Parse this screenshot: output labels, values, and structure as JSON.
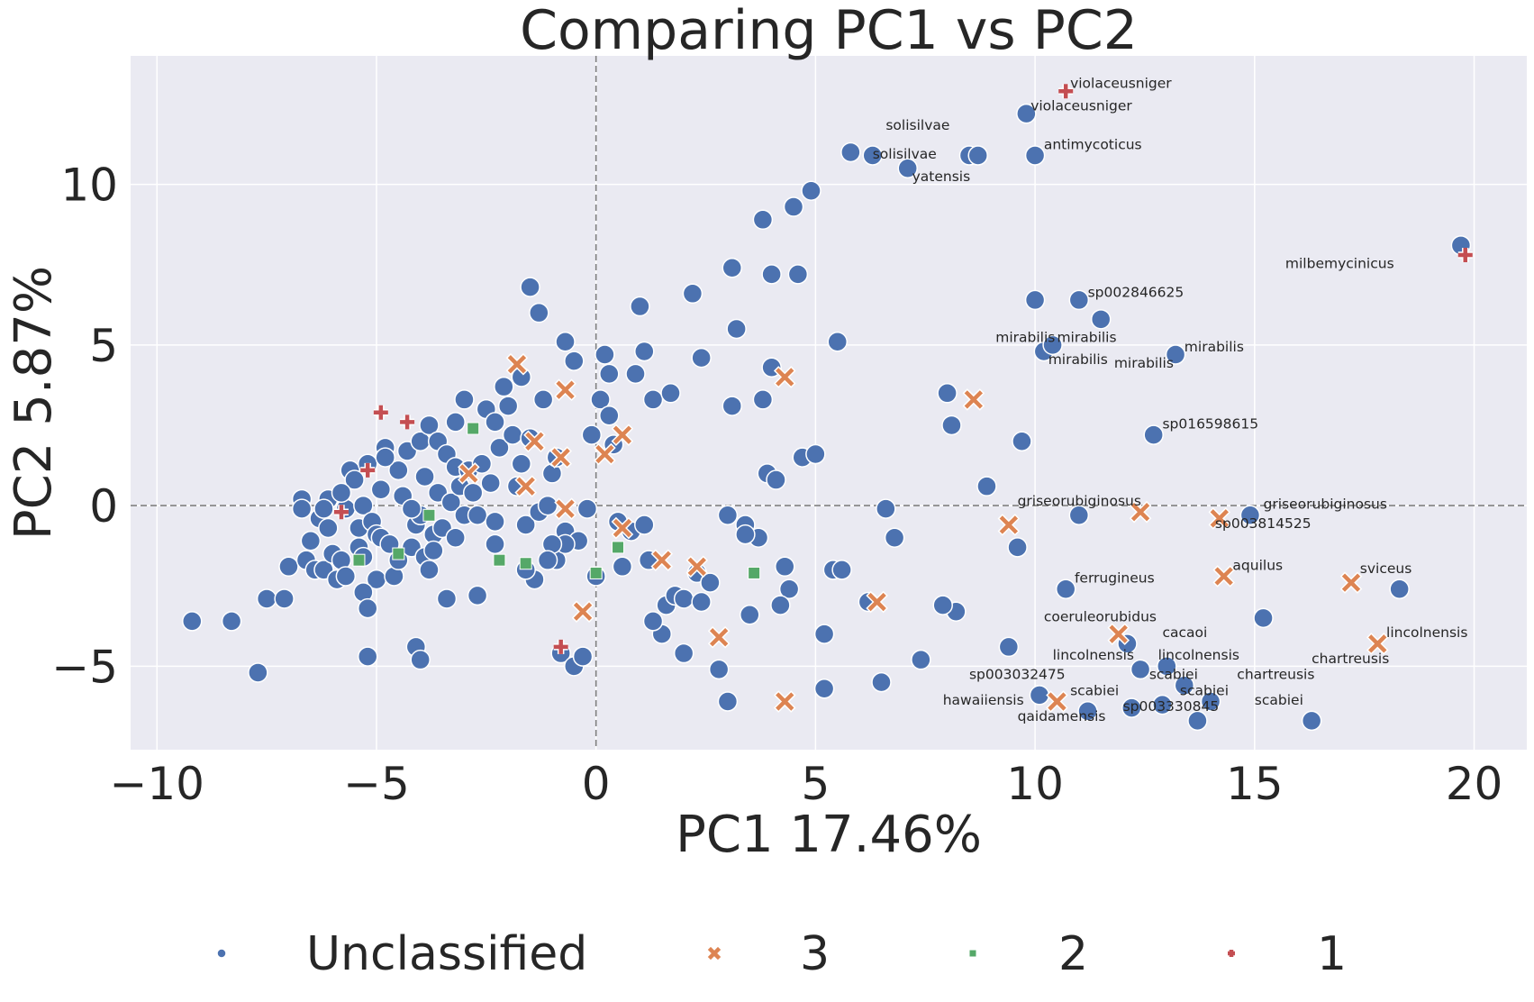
{
  "chart_data": {
    "type": "scatter",
    "title": "Comparing PC1 vs PC2",
    "xlabel": "PC1 17.46%",
    "ylabel": "PC2 5.87%",
    "xlim": [
      -10.6,
      21.2
    ],
    "ylim": [
      -7.6,
      14.0
    ],
    "xticks": [
      -10,
      -5,
      0,
      5,
      10,
      15,
      20
    ],
    "xtick_labels": [
      "−10",
      "−5",
      "0",
      "5",
      "10",
      "15",
      "20"
    ],
    "yticks": [
      -5,
      0,
      5,
      10
    ],
    "ytick_labels": [
      "−5",
      "0",
      "5",
      "10"
    ],
    "grid": true,
    "background": "#eaeaf2",
    "reference_lines": {
      "x": 0,
      "y": 0,
      "style": "dashed",
      "color": "#808080"
    },
    "legend_position": "bottom",
    "series": [
      {
        "name": "Unclassified",
        "marker": "circle",
        "color": "#4c72b0",
        "points": [
          [
            -9.2,
            -3.6
          ],
          [
            -8.3,
            -3.6
          ],
          [
            -7.7,
            -5.2
          ],
          [
            -7.5,
            -2.9
          ],
          [
            -7.1,
            -2.9
          ],
          [
            -7.0,
            -1.9
          ],
          [
            -6.7,
            0.2
          ],
          [
            -6.6,
            -1.7
          ],
          [
            -6.5,
            -1.1
          ],
          [
            -6.4,
            -2.0
          ],
          [
            -6.3,
            -0.4
          ],
          [
            -6.2,
            -2.0
          ],
          [
            -6.1,
            -0.7
          ],
          [
            -6.1,
            0.2
          ],
          [
            -6.0,
            -1.5
          ],
          [
            -5.9,
            -2.3
          ],
          [
            -5.8,
            -1.7
          ],
          [
            -5.7,
            -0.1
          ],
          [
            -5.7,
            -2.2
          ],
          [
            -5.6,
            1.1
          ],
          [
            -5.5,
            0.8
          ],
          [
            -5.4,
            -0.7
          ],
          [
            -5.4,
            -1.3
          ],
          [
            -5.3,
            -1.6
          ],
          [
            -5.3,
            0.0
          ],
          [
            -5.2,
            1.3
          ],
          [
            -5.1,
            -0.5
          ],
          [
            -5.0,
            -2.3
          ],
          [
            -5.0,
            -0.9
          ],
          [
            -4.9,
            -1.0
          ],
          [
            -5.3,
            -2.7
          ],
          [
            -5.2,
            -3.2
          ],
          [
            -4.9,
            0.5
          ],
          [
            -4.8,
            1.8
          ],
          [
            -4.7,
            -1.2
          ],
          [
            -4.6,
            -2.2
          ],
          [
            -4.5,
            1.1
          ],
          [
            -4.5,
            -1.7
          ],
          [
            -4.4,
            0.3
          ],
          [
            -4.3,
            1.7
          ],
          [
            -4.2,
            -1.3
          ],
          [
            -4.1,
            -0.6
          ],
          [
            -4.0,
            2.0
          ],
          [
            -4.0,
            -0.3
          ],
          [
            -3.9,
            0.9
          ],
          [
            -3.9,
            -1.6
          ],
          [
            -3.8,
            2.5
          ],
          [
            -3.8,
            -2.0
          ],
          [
            -3.7,
            -0.9
          ],
          [
            -3.6,
            2.0
          ],
          [
            -3.6,
            0.4
          ],
          [
            -3.5,
            -0.7
          ],
          [
            -3.4,
            1.6
          ],
          [
            -3.3,
            0.1
          ],
          [
            -3.2,
            2.6
          ],
          [
            -3.2,
            1.2
          ],
          [
            -3.2,
            -1.0
          ],
          [
            -3.1,
            0.6
          ],
          [
            -3.0,
            -0.3
          ],
          [
            -2.9,
            1.1
          ],
          [
            -2.8,
            0.4
          ],
          [
            -2.7,
            -0.3
          ],
          [
            -2.6,
            1.3
          ],
          [
            -2.5,
            3.0
          ],
          [
            -2.4,
            0.7
          ],
          [
            -2.3,
            -0.5
          ],
          [
            -2.2,
            1.8
          ],
          [
            -2.1,
            3.7
          ],
          [
            -2.0,
            3.1
          ],
          [
            -1.9,
            2.2
          ],
          [
            -1.8,
            0.6
          ],
          [
            -1.7,
            1.3
          ],
          [
            -1.6,
            -0.6
          ],
          [
            -1.5,
            2.1
          ],
          [
            -1.4,
            -2.3
          ],
          [
            -1.3,
            -0.2
          ],
          [
            -1.2,
            3.3
          ],
          [
            -1.1,
            0.0
          ],
          [
            -1.0,
            1.0
          ],
          [
            -0.9,
            -1.7
          ],
          [
            -0.8,
            -4.6
          ],
          [
            -0.7,
            5.1
          ],
          [
            -0.7,
            -0.8
          ],
          [
            -0.5,
            4.5
          ],
          [
            -0.5,
            -5.0
          ],
          [
            -0.4,
            -1.1
          ],
          [
            -0.3,
            -4.7
          ],
          [
            -0.2,
            -0.1
          ],
          [
            -0.1,
            2.2
          ],
          [
            0.1,
            3.3
          ],
          [
            0.2,
            4.7
          ],
          [
            0.3,
            2.8
          ],
          [
            0.4,
            1.9
          ],
          [
            0.5,
            -0.5
          ],
          [
            0.6,
            -1.9
          ],
          [
            0.8,
            -0.8
          ],
          [
            0.9,
            4.1
          ],
          [
            1.0,
            6.2
          ],
          [
            1.1,
            -0.6
          ],
          [
            1.2,
            -1.7
          ],
          [
            1.3,
            3.3
          ],
          [
            1.5,
            -4.0
          ],
          [
            1.6,
            -3.1
          ],
          [
            1.7,
            3.5
          ],
          [
            1.8,
            -2.8
          ],
          [
            2.0,
            -4.6
          ],
          [
            2.2,
            6.6
          ],
          [
            2.3,
            -2.1
          ],
          [
            2.4,
            4.6
          ],
          [
            2.6,
            -2.4
          ],
          [
            2.8,
            -5.1
          ],
          [
            3.0,
            -0.3
          ],
          [
            3.1,
            3.1
          ],
          [
            3.1,
            7.4
          ],
          [
            3.2,
            5.5
          ],
          [
            3.4,
            -0.6
          ],
          [
            3.5,
            -3.4
          ],
          [
            3.7,
            -1.0
          ],
          [
            3.8,
            3.3
          ],
          [
            3.9,
            1.0
          ],
          [
            4.0,
            7.2
          ],
          [
            4.1,
            0.8
          ],
          [
            4.3,
            -1.9
          ],
          [
            4.4,
            -2.6
          ],
          [
            4.5,
            9.3
          ],
          [
            4.6,
            7.2
          ],
          [
            4.7,
            1.5
          ],
          [
            4.9,
            9.8
          ],
          [
            5.0,
            1.6
          ],
          [
            5.2,
            -4.0
          ],
          [
            5.2,
            -5.7
          ],
          [
            5.4,
            -2.0
          ],
          [
            5.5,
            5.1
          ],
          [
            5.8,
            11.0
          ],
          [
            6.3,
            10.9
          ],
          [
            6.5,
            -5.5
          ],
          [
            6.6,
            -0.1
          ],
          [
            6.8,
            -1.0
          ],
          [
            7.1,
            10.5
          ],
          [
            7.4,
            -4.8
          ],
          [
            8.0,
            3.5
          ],
          [
            8.1,
            2.5
          ],
          [
            8.2,
            -3.3
          ],
          [
            8.5,
            10.9
          ],
          [
            8.7,
            10.9
          ],
          [
            8.9,
            0.6
          ],
          [
            9.4,
            -4.4
          ],
          [
            9.7,
            2.0
          ],
          [
            9.8,
            12.2
          ],
          [
            10.0,
            6.4
          ],
          [
            10.0,
            10.9
          ],
          [
            10.2,
            4.8
          ],
          [
            10.4,
            5.0
          ],
          [
            10.7,
            -2.6
          ],
          [
            11.0,
            6.4
          ],
          [
            11.0,
            -0.3
          ],
          [
            11.5,
            5.8
          ],
          [
            12.1,
            -4.3
          ],
          [
            12.4,
            -5.1
          ],
          [
            12.7,
            2.2
          ],
          [
            13.0,
            -5.0
          ],
          [
            13.2,
            4.7
          ],
          [
            13.4,
            -5.6
          ],
          [
            14.0,
            -6.1
          ],
          [
            14.9,
            -0.3
          ],
          [
            15.2,
            -3.5
          ],
          [
            16.3,
            -6.7
          ],
          [
            18.3,
            -2.6
          ],
          [
            19.7,
            8.1
          ],
          [
            -4.8,
            1.5
          ],
          [
            -3.0,
            3.3
          ],
          [
            -2.3,
            2.6
          ],
          [
            -1.7,
            4.0
          ],
          [
            -1.5,
            6.8
          ],
          [
            -1.3,
            6.0
          ],
          [
            -0.9,
            1.5
          ],
          [
            0.3,
            4.1
          ],
          [
            1.1,
            4.8
          ],
          [
            2.0,
            -2.9
          ],
          [
            3.8,
            8.9
          ],
          [
            4.0,
            4.3
          ],
          [
            4.2,
            -3.1
          ],
          [
            5.6,
            -2.0
          ],
          [
            3.0,
            -6.1
          ],
          [
            -0.7,
            -1.2
          ],
          [
            -4.1,
            -4.4
          ],
          [
            -4.0,
            -4.8
          ],
          [
            -5.2,
            -4.7
          ],
          [
            -6.2,
            -0.1
          ],
          [
            -6.7,
            -0.1
          ],
          [
            -5.8,
            0.4
          ],
          [
            -4.2,
            -0.1
          ],
          [
            -3.7,
            -1.4
          ],
          [
            -2.3,
            -1.2
          ],
          [
            -1.0,
            -1.2
          ],
          [
            0.0,
            -2.2
          ],
          [
            1.3,
            -3.6
          ],
          [
            2.4,
            -3.0
          ],
          [
            3.4,
            -0.9
          ],
          [
            6.2,
            -3.0
          ],
          [
            7.9,
            -3.1
          ],
          [
            9.6,
            -1.3
          ],
          [
            13.7,
            -6.7
          ],
          [
            12.9,
            -6.2
          ],
          [
            11.2,
            -6.4
          ],
          [
            10.1,
            -5.9
          ],
          [
            12.2,
            -6.3
          ],
          [
            -3.4,
            -2.9
          ],
          [
            -2.7,
            -2.8
          ],
          [
            -1.6,
            -2.0
          ],
          [
            -1.1,
            -1.7
          ]
        ]
      },
      {
        "name": "3",
        "marker": "x",
        "color": "#dd8452",
        "points": [
          [
            -1.8,
            4.4
          ],
          [
            -0.7,
            3.6
          ],
          [
            -1.4,
            2.0
          ],
          [
            -0.8,
            1.5
          ],
          [
            0.2,
            1.6
          ],
          [
            0.6,
            2.2
          ],
          [
            -0.7,
            -0.1
          ],
          [
            0.6,
            -0.7
          ],
          [
            -0.3,
            -3.3
          ],
          [
            1.5,
            -1.7
          ],
          [
            2.3,
            -1.9
          ],
          [
            2.8,
            -4.1
          ],
          [
            4.3,
            4.0
          ],
          [
            4.3,
            -6.1
          ],
          [
            6.4,
            -3.0
          ],
          [
            8.6,
            3.3
          ],
          [
            9.4,
            -0.6
          ],
          [
            10.5,
            -6.1
          ],
          [
            11.9,
            -4.0
          ],
          [
            12.4,
            -0.2
          ],
          [
            14.2,
            -0.4
          ],
          [
            14.3,
            -2.2
          ],
          [
            17.2,
            -2.4
          ],
          [
            17.8,
            -4.3
          ],
          [
            -2.9,
            1.0
          ],
          [
            -1.6,
            0.6
          ]
        ]
      },
      {
        "name": "2",
        "marker": "square",
        "color": "#55a868",
        "points": [
          [
            -2.8,
            2.4
          ],
          [
            -4.5,
            -1.5
          ],
          [
            -3.8,
            -0.3
          ],
          [
            -2.2,
            -1.7
          ],
          [
            -1.6,
            -1.8
          ],
          [
            0.0,
            -2.1
          ],
          [
            0.5,
            -1.3
          ],
          [
            3.6,
            -2.1
          ],
          [
            -5.4,
            -1.7
          ]
        ]
      },
      {
        "name": "1",
        "marker": "plus",
        "color": "#c44e52",
        "points": [
          [
            -4.9,
            2.9
          ],
          [
            -4.3,
            2.6
          ],
          [
            -5.2,
            1.1
          ],
          [
            -5.8,
            -0.2
          ],
          [
            -0.8,
            -4.4
          ],
          [
            10.7,
            12.9
          ],
          [
            19.8,
            7.8
          ]
        ]
      }
    ],
    "annotations": [
      {
        "text": "violaceusniger",
        "x": 10.8,
        "y": 13.0
      },
      {
        "text": "violaceusniger",
        "x": 9.9,
        "y": 12.3
      },
      {
        "text": "solisilvae",
        "x": 6.6,
        "y": 11.7
      },
      {
        "text": "solisilvae",
        "x": 6.3,
        "y": 10.8
      },
      {
        "text": "antimycoticus",
        "x": 10.2,
        "y": 11.1
      },
      {
        "text": "yatensis",
        "x": 7.2,
        "y": 10.1
      },
      {
        "text": "milbemycinicus",
        "x": 15.7,
        "y": 7.4
      },
      {
        "text": "sp002846625",
        "x": 11.2,
        "y": 6.5
      },
      {
        "text": "mirabilis",
        "x": 9.1,
        "y": 5.1
      },
      {
        "text": "mirabilis",
        "x": 10.5,
        "y": 5.1
      },
      {
        "text": "mirabilis",
        "x": 13.4,
        "y": 4.8
      },
      {
        "text": "mirabilis",
        "x": 10.3,
        "y": 4.4
      },
      {
        "text": "mirabilis",
        "x": 11.8,
        "y": 4.3
      },
      {
        "text": "sp016598615",
        "x": 12.9,
        "y": 2.4
      },
      {
        "text": "griseorubiginosus",
        "x": 9.6,
        "y": 0.0
      },
      {
        "text": "griseorubiginosus",
        "x": 15.2,
        "y": -0.1
      },
      {
        "text": "sp003814525",
        "x": 14.1,
        "y": -0.7
      },
      {
        "text": "ferrugineus",
        "x": 10.9,
        "y": -2.4
      },
      {
        "text": "aquilus",
        "x": 14.5,
        "y": -2.0
      },
      {
        "text": "sviceus",
        "x": 17.4,
        "y": -2.1
      },
      {
        "text": "coeruleorubidus",
        "x": 10.2,
        "y": -3.6
      },
      {
        "text": "cacaoi",
        "x": 12.9,
        "y": -4.1
      },
      {
        "text": "lincolnensis",
        "x": 18.0,
        "y": -4.1
      },
      {
        "text": "lincolnensis",
        "x": 10.4,
        "y": -4.8
      },
      {
        "text": "lincolnensis",
        "x": 12.8,
        "y": -4.8
      },
      {
        "text": "chartreusis",
        "x": 16.3,
        "y": -4.9
      },
      {
        "text": "chartreusis",
        "x": 14.6,
        "y": -5.4
      },
      {
        "text": "sp003032475",
        "x": 8.5,
        "y": -5.4
      },
      {
        "text": "scabiei",
        "x": 12.6,
        "y": -5.4
      },
      {
        "text": "scabiei",
        "x": 10.8,
        "y": -5.9
      },
      {
        "text": "scabiei",
        "x": 13.3,
        "y": -5.9
      },
      {
        "text": "scabiei",
        "x": 15.0,
        "y": -6.2
      },
      {
        "text": "hawaiiensis",
        "x": 7.9,
        "y": -6.2
      },
      {
        "text": "sp003330845",
        "x": 12.0,
        "y": -6.4
      },
      {
        "text": "qaidamensis",
        "x": 9.6,
        "y": -6.7
      }
    ],
    "legend": [
      "Unclassified",
      "3",
      "2",
      "1"
    ]
  }
}
